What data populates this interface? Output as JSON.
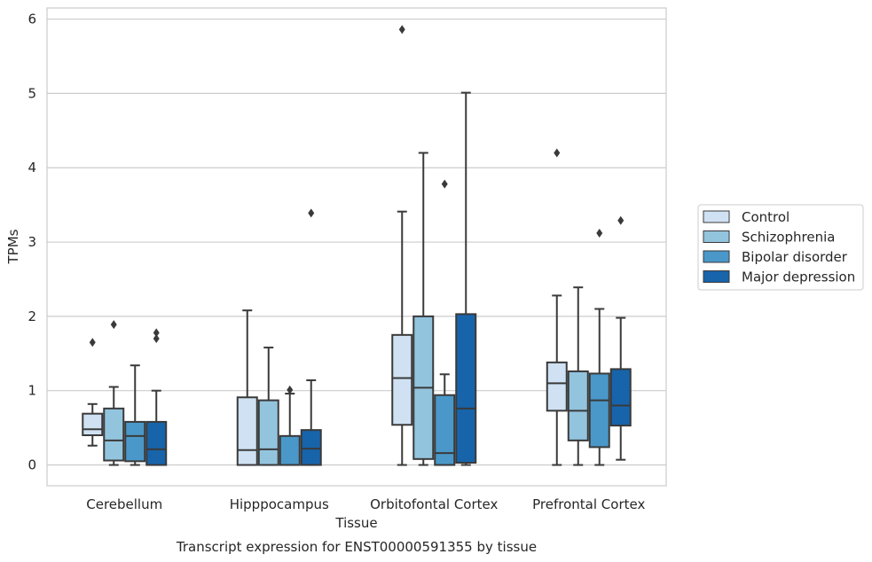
{
  "chart_data": {
    "type": "box",
    "caption": "Transcript expression for ENST00000591355 by tissue",
    "xlabel": "Tissue",
    "ylabel": "TPMs",
    "ylim": [
      -0.28,
      6.15
    ],
    "yticks": [
      0,
      1,
      2,
      3,
      4,
      5,
      6
    ],
    "grid": "horizontal",
    "legend_position": "right",
    "categories": [
      "Cerebellum",
      "Hipppocampus",
      "Orbitofontal Cortex",
      "Prefrontal Cortex"
    ],
    "series": [
      {
        "name": "Control",
        "color": "#cfe1f2",
        "boxes": [
          {
            "whisker_low": 0.26,
            "q1": 0.4,
            "median": 0.48,
            "q3": 0.69,
            "whisker_high": 0.82,
            "outliers": [
              1.65
            ]
          },
          {
            "whisker_low": 0.0,
            "q1": 0.0,
            "median": 0.2,
            "q3": 0.91,
            "whisker_high": 2.08,
            "outliers": []
          },
          {
            "whisker_low": 0.0,
            "q1": 0.54,
            "median": 1.17,
            "q3": 1.75,
            "whisker_high": 3.41,
            "outliers": [
              5.86
            ]
          },
          {
            "whisker_low": 0.0,
            "q1": 0.73,
            "median": 1.1,
            "q3": 1.38,
            "whisker_high": 2.28,
            "outliers": [
              4.2
            ]
          }
        ]
      },
      {
        "name": "Schizophrenia",
        "color": "#93c4de",
        "boxes": [
          {
            "whisker_low": 0.0,
            "q1": 0.06,
            "median": 0.33,
            "q3": 0.76,
            "whisker_high": 1.05,
            "outliers": [
              1.89
            ]
          },
          {
            "whisker_low": 0.0,
            "q1": 0.0,
            "median": 0.21,
            "q3": 0.87,
            "whisker_high": 1.58,
            "outliers": []
          },
          {
            "whisker_low": 0.0,
            "q1": 0.08,
            "median": 1.04,
            "q3": 2.0,
            "whisker_high": 4.2,
            "outliers": []
          },
          {
            "whisker_low": 0.0,
            "q1": 0.33,
            "median": 0.73,
            "q3": 1.26,
            "whisker_high": 2.39,
            "outliers": []
          }
        ]
      },
      {
        "name": "Bipolar disorder",
        "color": "#4a98c9",
        "boxes": [
          {
            "whisker_low": 0.0,
            "q1": 0.05,
            "median": 0.39,
            "q3": 0.58,
            "whisker_high": 1.34,
            "outliers": []
          },
          {
            "whisker_low": 0.0,
            "q1": 0.0,
            "median": 0.0,
            "q3": 0.39,
            "whisker_high": 0.96,
            "outliers": [
              1.01
            ]
          },
          {
            "whisker_low": 0.0,
            "q1": 0.0,
            "median": 0.16,
            "q3": 0.94,
            "whisker_high": 1.22,
            "outliers": [
              3.78
            ]
          },
          {
            "whisker_low": 0.0,
            "q1": 0.24,
            "median": 0.87,
            "q3": 1.23,
            "whisker_high": 2.1,
            "outliers": [
              3.12
            ]
          }
        ]
      },
      {
        "name": "Major depression",
        "color": "#1764ab",
        "boxes": [
          {
            "whisker_low": 0.0,
            "q1": 0.0,
            "median": 0.21,
            "q3": 0.58,
            "whisker_high": 1.0,
            "outliers": [
              1.7,
              1.78
            ]
          },
          {
            "whisker_low": 0.0,
            "q1": 0.0,
            "median": 0.22,
            "q3": 0.47,
            "whisker_high": 1.14,
            "outliers": [
              3.39
            ]
          },
          {
            "whisker_low": 0.0,
            "q1": 0.03,
            "median": 0.76,
            "q3": 2.03,
            "whisker_high": 5.01,
            "outliers": []
          },
          {
            "whisker_low": 0.07,
            "q1": 0.53,
            "median": 0.8,
            "q3": 1.29,
            "whisker_high": 1.98,
            "outliers": [
              3.29
            ]
          }
        ]
      }
    ]
  }
}
